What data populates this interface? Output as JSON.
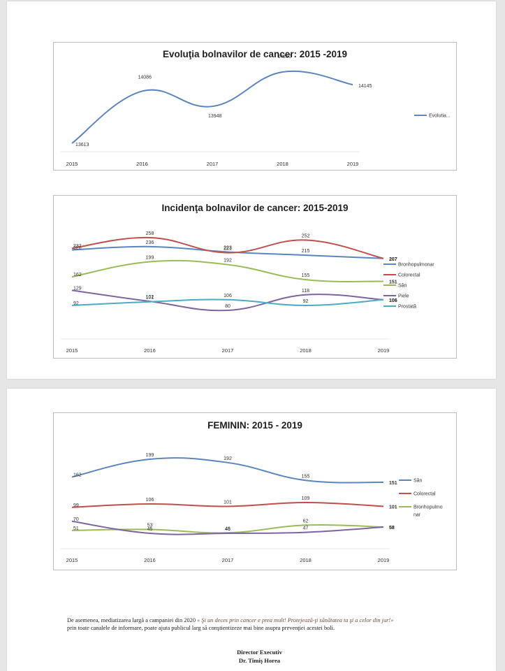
{
  "chart_data": [
    {
      "type": "line",
      "title": "Evoluţia bolnavilor de cancer: 2015 -2019",
      "x": [
        "2015",
        "2016",
        "2017",
        "2018",
        "2019"
      ],
      "series": [
        {
          "name": "Evolutia...",
          "values": [
            13613,
            14086,
            13948,
            14260,
            14145
          ],
          "color": "#5b86bf"
        }
      ],
      "legend": "right",
      "grid": false
    },
    {
      "type": "line",
      "title": "Incidenţa bolnavilor de cancer: 2015-2019",
      "x": [
        "2015",
        "2016",
        "2017",
        "2018",
        "2019"
      ],
      "series": [
        {
          "name": "Bronhopulmonar",
          "values": [
            228,
            236,
            223,
            215,
            207
          ],
          "color": "#5b86bf"
        },
        {
          "name": "Colorectal",
          "values": [
            232,
            258,
            221,
            252,
            207
          ],
          "color": "#c0504d"
        },
        {
          "name": "Sân",
          "values": [
            162,
            199,
            192,
            155,
            151
          ],
          "color": "#9bbb59"
        },
        {
          "name": "Piele",
          "values": [
            129,
            102,
            80,
            118,
            106
          ],
          "color": "#8064a2"
        },
        {
          "name": "Prostată",
          "values": [
            92,
            101,
            106,
            92,
            106
          ],
          "color": "#4bacc6"
        }
      ],
      "legend": "right",
      "grid": false
    },
    {
      "type": "line",
      "title": "FEMININ: 2015 - 2019",
      "x": [
        "2015",
        "2016",
        "2017",
        "2018",
        "2019"
      ],
      "series": [
        {
          "name": "Sân",
          "values": [
            162,
            199,
            192,
            155,
            151
          ],
          "color": "#5b86bf"
        },
        {
          "name": "Colorectal",
          "values": [
            99,
            106,
            101,
            109,
            101
          ],
          "color": "#c0504d"
        },
        {
          "name": "Bronhopulmonar",
          "values": [
            51,
            53,
            46,
            62,
            58
          ],
          "color": "#9bbb59"
        },
        {
          "name": "",
          "values": [
            70,
            45,
            45,
            47,
            58
          ],
          "color": "#8064a2"
        }
      ],
      "legend": "right",
      "grid": false
    }
  ],
  "footer": {
    "line1_before": "De asemenea, mediatizarea largă a campaniei din 2020 ",
    "line1_quote": "« Şi un deces prin cancer e prea mult! Protejează-ţi sănătatea ta şi a celor din jur!»",
    "line2": "prin toate canalele de informare, poate ajuta publicul larg să conştientizeze mai bine asupra prevenţiei acestei boli.",
    "sign_title": "Director Executiv",
    "sign_name": "Dr.  Timiş Horea"
  }
}
